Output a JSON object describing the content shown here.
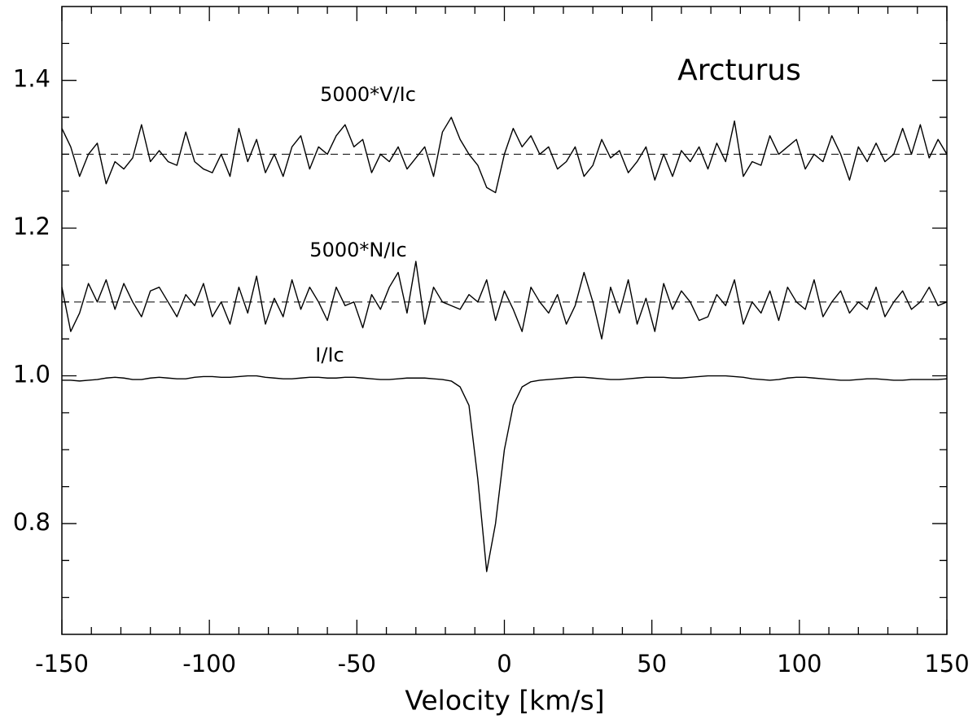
{
  "chart_data": {
    "type": "line",
    "title": "Arcturus",
    "xlabel": "Velocity [km/s]",
    "xlim": [
      -150,
      150
    ],
    "ylim": [
      0.65,
      1.5
    ],
    "xticks": [
      -150,
      -100,
      -50,
      0,
      50,
      100,
      150
    ],
    "xminorticks": [
      -140,
      -130,
      -120,
      -110,
      -90,
      -80,
      -70,
      -60,
      -40,
      -30,
      -20,
      -10,
      10,
      20,
      30,
      40,
      60,
      70,
      80,
      90,
      110,
      120,
      130,
      140
    ],
    "yticks": [
      0.8,
      {
        "value": 1,
        "label": "1.0"
      },
      1.2,
      1.4
    ],
    "yminorticks": [
      0.7,
      0.75,
      0.85,
      0.9,
      0.95,
      1.05,
      1.1,
      1.15,
      1.25,
      1.3,
      1.35,
      1.45
    ],
    "hlines": [
      1.3,
      1.1
    ],
    "x": [
      -150,
      -147,
      -144,
      -141,
      -138,
      -135,
      -132,
      -129,
      -126,
      -123,
      -120,
      -117,
      -114,
      -111,
      -108,
      -105,
      -102,
      -99,
      -96,
      -93,
      -90,
      -87,
      -84,
      -81,
      -78,
      -75,
      -72,
      -69,
      -66,
      -63,
      -60,
      -57,
      -54,
      -51,
      -48,
      -45,
      -42,
      -39,
      -36,
      -33,
      -30,
      -27,
      -24,
      -21,
      -18,
      -15,
      -12,
      -9,
      -6,
      -3,
      0,
      3,
      6,
      9,
      12,
      15,
      18,
      21,
      24,
      27,
      30,
      33,
      36,
      39,
      42,
      45,
      48,
      51,
      54,
      57,
      60,
      63,
      66,
      69,
      72,
      75,
      78,
      81,
      84,
      87,
      90,
      93,
      96,
      99,
      102,
      105,
      108,
      111,
      114,
      117,
      120,
      123,
      126,
      129,
      132,
      135,
      138,
      141,
      144,
      147,
      150
    ],
    "series": [
      {
        "name": "5000*V/Ic",
        "color": "#000000",
        "values": [
          1.335,
          1.31,
          1.27,
          1.3,
          1.315,
          1.26,
          1.29,
          1.28,
          1.295,
          1.34,
          1.29,
          1.305,
          1.29,
          1.285,
          1.33,
          1.29,
          1.28,
          1.275,
          1.3,
          1.27,
          1.335,
          1.29,
          1.32,
          1.275,
          1.3,
          1.27,
          1.31,
          1.325,
          1.28,
          1.31,
          1.3,
          1.325,
          1.34,
          1.31,
          1.32,
          1.275,
          1.3,
          1.29,
          1.31,
          1.28,
          1.295,
          1.31,
          1.27,
          1.33,
          1.35,
          1.32,
          1.3,
          1.285,
          1.255,
          1.248,
          1.3,
          1.335,
          1.31,
          1.325,
          1.3,
          1.31,
          1.28,
          1.29,
          1.31,
          1.27,
          1.285,
          1.32,
          1.295,
          1.305,
          1.275,
          1.29,
          1.31,
          1.265,
          1.3,
          1.27,
          1.305,
          1.29,
          1.31,
          1.28,
          1.315,
          1.29,
          1.345,
          1.27,
          1.29,
          1.285,
          1.325,
          1.3,
          1.31,
          1.32,
          1.28,
          1.3,
          1.29,
          1.325,
          1.3,
          1.265,
          1.31,
          1.29,
          1.315,
          1.29,
          1.3,
          1.335,
          1.3,
          1.34,
          1.295,
          1.32,
          1.3
        ]
      },
      {
        "name": "5000*N/Ic",
        "color": "#000000",
        "values": [
          1.12,
          1.06,
          1.085,
          1.125,
          1.1,
          1.13,
          1.09,
          1.125,
          1.1,
          1.08,
          1.115,
          1.12,
          1.1,
          1.08,
          1.11,
          1.095,
          1.125,
          1.08,
          1.1,
          1.07,
          1.12,
          1.085,
          1.135,
          1.07,
          1.105,
          1.08,
          1.13,
          1.09,
          1.12,
          1.1,
          1.075,
          1.12,
          1.095,
          1.1,
          1.065,
          1.11,
          1.09,
          1.12,
          1.14,
          1.085,
          1.155,
          1.07,
          1.12,
          1.1,
          1.095,
          1.09,
          1.11,
          1.1,
          1.13,
          1.075,
          1.115,
          1.09,
          1.06,
          1.12,
          1.1,
          1.085,
          1.11,
          1.07,
          1.095,
          1.14,
          1.1,
          1.05,
          1.12,
          1.085,
          1.13,
          1.07,
          1.105,
          1.06,
          1.125,
          1.09,
          1.115,
          1.1,
          1.075,
          1.08,
          1.11,
          1.095,
          1.13,
          1.07,
          1.1,
          1.085,
          1.115,
          1.075,
          1.12,
          1.1,
          1.09,
          1.13,
          1.08,
          1.1,
          1.115,
          1.085,
          1.1,
          1.09,
          1.12,
          1.08,
          1.1,
          1.115,
          1.09,
          1.1,
          1.12,
          1.095,
          1.1
        ]
      },
      {
        "name": "I/Ic",
        "color": "#000000",
        "values": [
          0.994,
          0.994,
          0.993,
          0.994,
          0.995,
          0.997,
          0.998,
          0.997,
          0.995,
          0.995,
          0.997,
          0.998,
          0.997,
          0.996,
          0.996,
          0.998,
          0.999,
          0.999,
          0.998,
          0.998,
          0.999,
          1.0,
          1.0,
          0.998,
          0.997,
          0.996,
          0.996,
          0.997,
          0.998,
          0.998,
          0.997,
          0.997,
          0.998,
          0.998,
          0.997,
          0.996,
          0.995,
          0.995,
          0.996,
          0.997,
          0.997,
          0.997,
          0.996,
          0.995,
          0.993,
          0.985,
          0.96,
          0.86,
          0.735,
          0.8,
          0.9,
          0.96,
          0.985,
          0.992,
          0.994,
          0.995,
          0.996,
          0.997,
          0.998,
          0.998,
          0.997,
          0.996,
          0.995,
          0.995,
          0.996,
          0.997,
          0.998,
          0.998,
          0.998,
          0.997,
          0.997,
          0.998,
          0.999,
          1.0,
          1.0,
          1.0,
          0.999,
          0.998,
          0.996,
          0.995,
          0.994,
          0.995,
          0.997,
          0.998,
          0.998,
          0.997,
          0.996,
          0.995,
          0.994,
          0.994,
          0.995,
          0.996,
          0.996,
          0.995,
          0.994,
          0.994,
          0.995,
          0.995,
          0.995,
          0.995,
          0.996
        ]
      }
    ]
  }
}
